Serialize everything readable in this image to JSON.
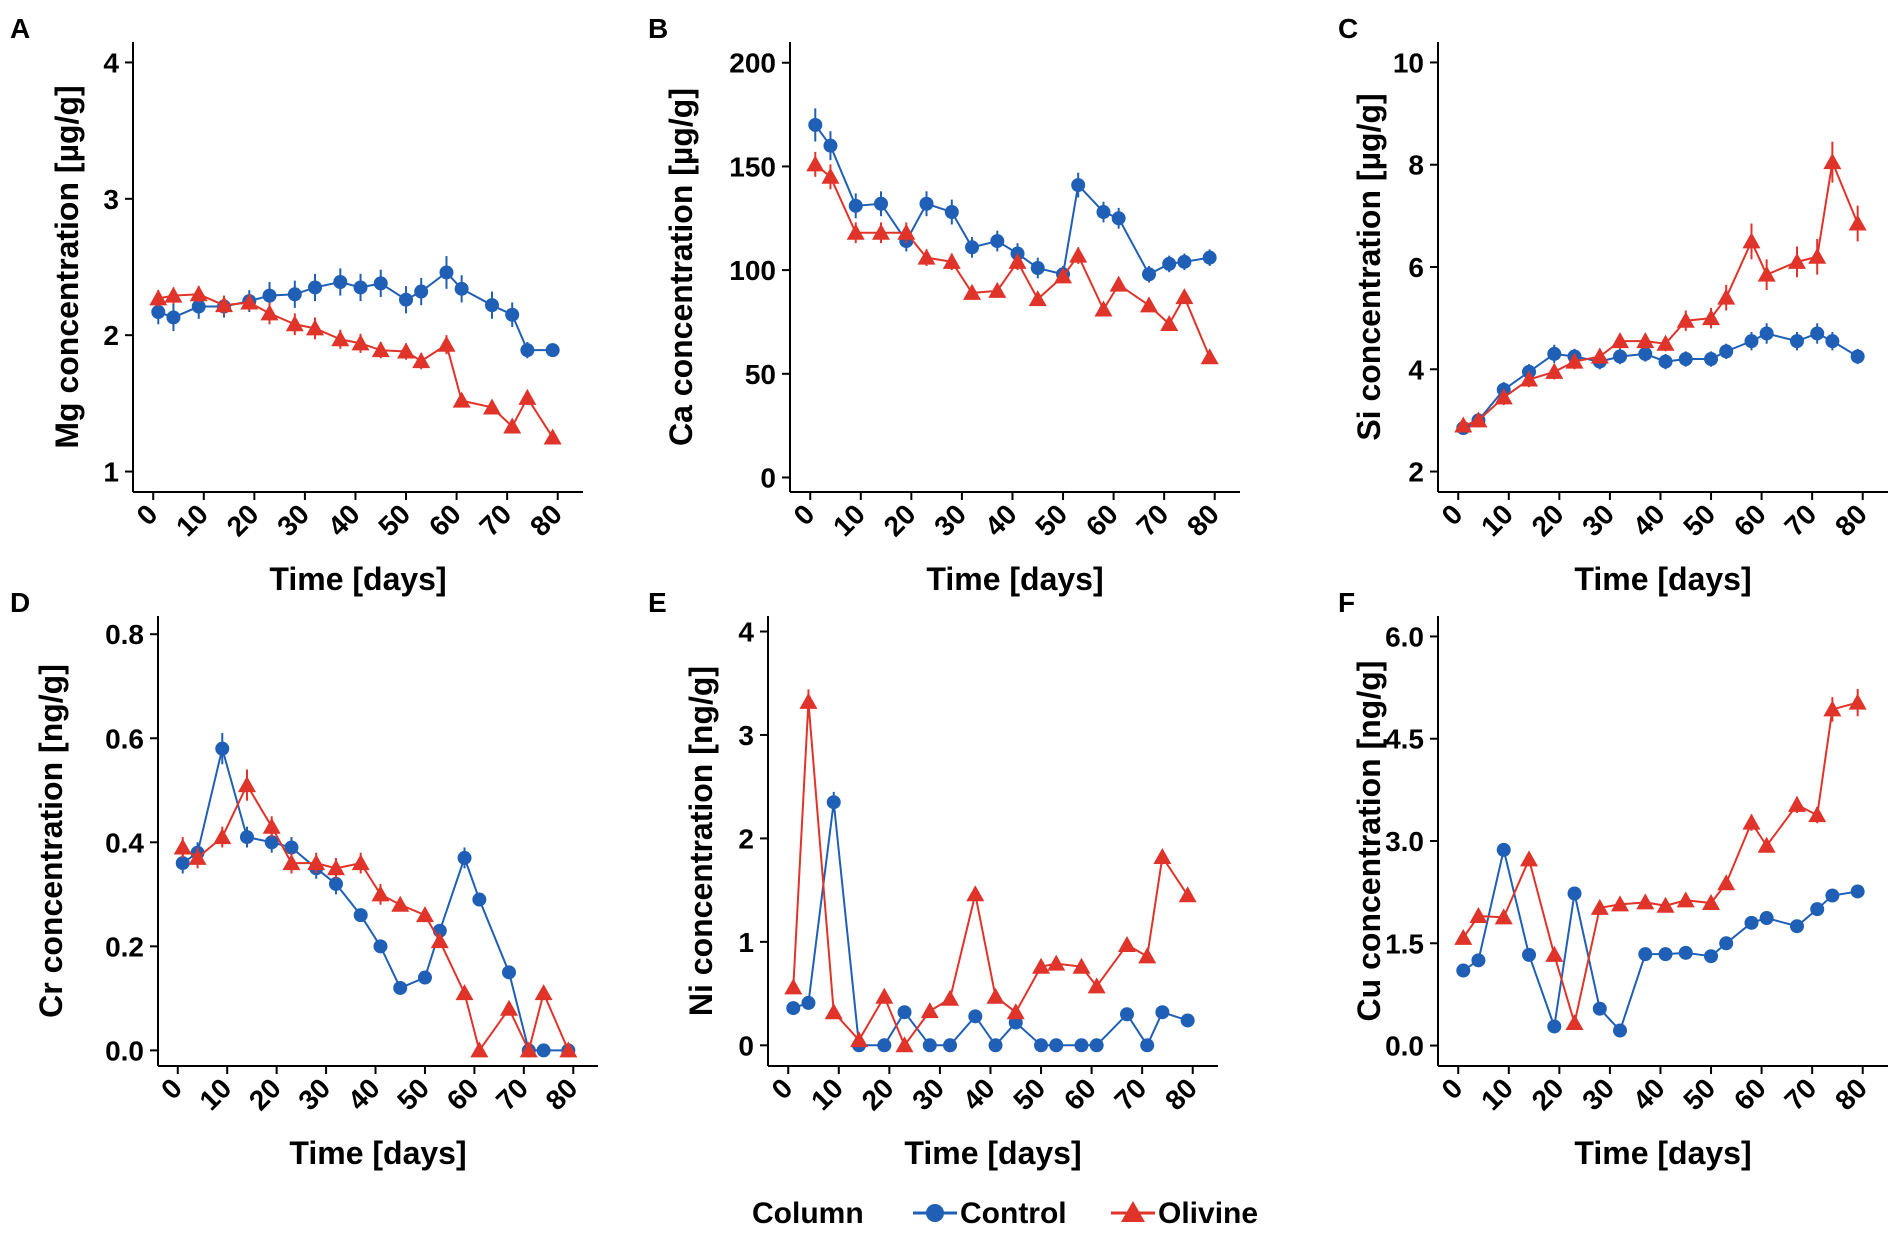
{
  "legend": {
    "title": "Column",
    "items": [
      {
        "label": "Control",
        "color": "#1F5FB5",
        "shape": "circle"
      },
      {
        "label": "Olivine",
        "color": "#E0342A",
        "shape": "triangle"
      }
    ]
  },
  "chart_data": [
    {
      "panel": "A",
      "type": "line",
      "xlabel": "Time [days]",
      "ylabel": "Mg concentration [µg/g]",
      "xlim": [
        -4,
        85
      ],
      "ylim": [
        0.85,
        4.15
      ],
      "xticks": [
        0,
        10,
        20,
        30,
        40,
        50,
        60,
        70,
        80
      ],
      "yticks": [
        1,
        2,
        3,
        4
      ],
      "ytick_labels": [
        "1",
        "2",
        "3",
        "4"
      ],
      "series": [
        {
          "name": "Control",
          "x": [
            1,
            4,
            9,
            14,
            19,
            23,
            28,
            32,
            37,
            41,
            45,
            50,
            53,
            58,
            61,
            67,
            71,
            74,
            79
          ],
          "y": [
            2.17,
            2.13,
            2.21,
            2.21,
            2.25,
            2.29,
            2.3,
            2.35,
            2.39,
            2.35,
            2.38,
            2.26,
            2.32,
            2.46,
            2.34,
            2.22,
            2.15,
            1.89,
            1.89
          ],
          "err": [
            0.09,
            0.1,
            0.09,
            0.08,
            0.08,
            0.1,
            0.1,
            0.1,
            0.1,
            0.1,
            0.1,
            0.1,
            0.1,
            0.12,
            0.1,
            0.1,
            0.09,
            0.06,
            0.05
          ]
        },
        {
          "name": "Olivine",
          "x": [
            1,
            4,
            9,
            14,
            19,
            23,
            28,
            32,
            37,
            41,
            45,
            50,
            53,
            58,
            61,
            67,
            71,
            74,
            79
          ],
          "y": [
            2.27,
            2.29,
            2.3,
            2.22,
            2.24,
            2.16,
            2.08,
            2.05,
            1.97,
            1.94,
            1.89,
            1.88,
            1.81,
            1.93,
            1.52,
            1.47,
            1.33,
            1.54,
            1.25
          ],
          "err": [
            0.06,
            0.06,
            0.06,
            0.07,
            0.06,
            0.08,
            0.08,
            0.08,
            0.07,
            0.07,
            0.06,
            0.06,
            0.06,
            0.07,
            0.05,
            0.04,
            0.05,
            0.05,
            0.04
          ]
        }
      ]
    },
    {
      "panel": "B",
      "type": "line",
      "xlabel": "Time [days]",
      "ylabel": "Ca concentration [µg/g]",
      "xlim": [
        -4,
        85
      ],
      "ylim": [
        -7,
        210
      ],
      "xticks": [
        0,
        10,
        20,
        30,
        40,
        50,
        60,
        70,
        80
      ],
      "yticks": [
        0,
        50,
        100,
        150,
        200
      ],
      "ytick_labels": [
        "0",
        "50",
        "100",
        "150",
        "200"
      ],
      "series": [
        {
          "name": "Control",
          "x": [
            1,
            4,
            9,
            14,
            19,
            23,
            28,
            32,
            37,
            41,
            45,
            50,
            53,
            58,
            61,
            67,
            71,
            74,
            79
          ],
          "y": [
            170,
            160,
            131,
            132,
            114,
            132,
            128,
            111,
            114,
            108,
            101,
            98,
            141,
            128,
            125,
            98,
            103,
            104,
            106
          ],
          "err": [
            8,
            7,
            6,
            6,
            5,
            6,
            6,
            5,
            5,
            5,
            5,
            4,
            6,
            5,
            5,
            4,
            4,
            4,
            4
          ]
        },
        {
          "name": "Olivine",
          "x": [
            1,
            4,
            9,
            14,
            19,
            23,
            28,
            32,
            37,
            41,
            45,
            50,
            53,
            58,
            61,
            67,
            71,
            74,
            79
          ],
          "y": [
            151,
            145,
            118,
            118,
            118,
            106,
            104,
            89,
            90,
            104,
            86,
            97,
            107,
            81,
            93,
            83,
            74,
            87,
            58
          ],
          "err": [
            6,
            6,
            5,
            5,
            5,
            4,
            4,
            3,
            3,
            4,
            3,
            3,
            4,
            3,
            3,
            3,
            3,
            3,
            2
          ]
        }
      ]
    },
    {
      "panel": "C",
      "type": "line",
      "xlabel": "Time [days]",
      "ylabel": "Si concentration [µg/g]",
      "xlim": [
        -4,
        85
      ],
      "ylim": [
        1.6,
        10.4
      ],
      "xticks": [
        0,
        10,
        20,
        30,
        40,
        50,
        60,
        70,
        80
      ],
      "yticks": [
        2,
        4,
        6,
        8,
        10
      ],
      "ytick_labels": [
        "2",
        "4",
        "6",
        "8",
        "10"
      ],
      "series": [
        {
          "name": "Control",
          "x": [
            1,
            4,
            9,
            14,
            19,
            23,
            28,
            32,
            37,
            41,
            45,
            50,
            53,
            58,
            61,
            67,
            71,
            74,
            79
          ],
          "y": [
            2.85,
            3.0,
            3.6,
            3.95,
            4.3,
            4.25,
            4.15,
            4.25,
            4.3,
            4.15,
            4.2,
            4.2,
            4.35,
            4.55,
            4.7,
            4.55,
            4.7,
            4.55,
            4.25
          ],
          "err": [
            0.08,
            0.1,
            0.15,
            0.15,
            0.18,
            0.15,
            0.15,
            0.15,
            0.15,
            0.15,
            0.15,
            0.15,
            0.15,
            0.18,
            0.2,
            0.18,
            0.2,
            0.18,
            0.15
          ]
        },
        {
          "name": "Olivine",
          "x": [
            1,
            4,
            9,
            14,
            19,
            23,
            28,
            32,
            37,
            41,
            45,
            50,
            53,
            58,
            61,
            67,
            71,
            74,
            79
          ],
          "y": [
            2.9,
            3.0,
            3.45,
            3.8,
            3.95,
            4.15,
            4.25,
            4.55,
            4.55,
            4.5,
            4.95,
            5.0,
            5.4,
            6.5,
            5.85,
            6.1,
            6.2,
            8.05,
            6.85
          ],
          "err": [
            0.1,
            0.1,
            0.15,
            0.15,
            0.15,
            0.15,
            0.15,
            0.15,
            0.15,
            0.15,
            0.2,
            0.2,
            0.25,
            0.35,
            0.3,
            0.3,
            0.35,
            0.4,
            0.35
          ]
        }
      ]
    },
    {
      "panel": "D",
      "type": "line",
      "xlabel": "Time [days]",
      "ylabel": "Cr concentration [ng/g]",
      "xlim": [
        -4,
        85
      ],
      "ylim": [
        -0.03,
        0.835
      ],
      "xticks": [
        0,
        10,
        20,
        30,
        40,
        50,
        60,
        70,
        80
      ],
      "yticks": [
        0,
        0.2,
        0.4,
        0.6,
        0.8
      ],
      "ytick_labels": [
        "0.0",
        "0.2",
        "0.4",
        "0.6",
        "0.8"
      ],
      "series": [
        {
          "name": "Control",
          "x": [
            1,
            4,
            9,
            14,
            19,
            23,
            28,
            32,
            37,
            41,
            45,
            50,
            53,
            58,
            61,
            67,
            71,
            74,
            79
          ],
          "y": [
            0.36,
            0.38,
            0.58,
            0.41,
            0.4,
            0.39,
            0.35,
            0.32,
            0.26,
            0.2,
            0.12,
            0.14,
            0.23,
            0.37,
            0.29,
            0.15,
            0.0,
            0.0,
            0.0
          ],
          "err": [
            0.02,
            0.02,
            0.03,
            0.02,
            0.02,
            0.02,
            0.02,
            0.02,
            0.01,
            0.01,
            0.01,
            0.01,
            0.01,
            0.02,
            0.01,
            0.01,
            0.0,
            0.0,
            0.0
          ]
        },
        {
          "name": "Olivine",
          "x": [
            1,
            4,
            9,
            14,
            19,
            23,
            28,
            32,
            37,
            41,
            45,
            50,
            53,
            58,
            61,
            67,
            71,
            74,
            79
          ],
          "y": [
            0.39,
            0.37,
            0.41,
            0.51,
            0.43,
            0.36,
            0.36,
            0.35,
            0.36,
            0.3,
            0.28,
            0.26,
            0.21,
            0.11,
            0.0,
            0.08,
            0.0,
            0.11,
            0.0
          ],
          "err": [
            0.02,
            0.02,
            0.02,
            0.03,
            0.02,
            0.02,
            0.02,
            0.02,
            0.02,
            0.02,
            0.01,
            0.01,
            0.01,
            0.01,
            0.0,
            0.01,
            0.0,
            0.01,
            0.0
          ]
        }
      ]
    },
    {
      "panel": "E",
      "type": "line",
      "xlabel": "Time [days]",
      "ylabel": "Ni concentration [ng/g]",
      "xlim": [
        -4,
        85
      ],
      "ylim": [
        -0.2,
        4.15
      ],
      "xticks": [
        0,
        10,
        20,
        30,
        40,
        50,
        60,
        70,
        80
      ],
      "yticks": [
        0,
        1,
        2,
        3,
        4
      ],
      "ytick_labels": [
        "0",
        "1",
        "2",
        "3",
        "4"
      ],
      "series": [
        {
          "name": "Control",
          "x": [
            1,
            4,
            9,
            14,
            19,
            23,
            28,
            32,
            37,
            41,
            45,
            50,
            53,
            58,
            61,
            67,
            71,
            74,
            79
          ],
          "y": [
            0.36,
            0.41,
            2.35,
            0.0,
            0.0,
            0.32,
            0.0,
            0.0,
            0.28,
            0.0,
            0.22,
            0.0,
            0.0,
            0.0,
            0.0,
            0.3,
            0.0,
            0.32,
            0.24
          ],
          "err": [
            0.03,
            0.03,
            0.1,
            0.0,
            0.0,
            0.02,
            0.0,
            0.0,
            0.02,
            0.0,
            0.02,
            0.0,
            0.0,
            0.0,
            0.0,
            0.02,
            0.0,
            0.02,
            0.02
          ]
        },
        {
          "name": "Olivine",
          "x": [
            1,
            4,
            9,
            14,
            19,
            23,
            28,
            32,
            37,
            41,
            45,
            50,
            53,
            58,
            61,
            67,
            71,
            74,
            79
          ],
          "y": [
            0.56,
            3.32,
            0.32,
            0.05,
            0.47,
            0.0,
            0.33,
            0.45,
            1.46,
            0.47,
            0.32,
            0.76,
            0.79,
            0.76,
            0.57,
            0.97,
            0.86,
            1.82,
            1.45
          ],
          "err": [
            0.04,
            0.12,
            0.03,
            0.02,
            0.03,
            0.0,
            0.03,
            0.03,
            0.06,
            0.03,
            0.03,
            0.04,
            0.04,
            0.04,
            0.04,
            0.05,
            0.05,
            0.07,
            0.06
          ]
        }
      ]
    },
    {
      "panel": "F",
      "type": "line",
      "xlabel": "Time [days]",
      "ylabel": "Cu concentration [ng/g]",
      "xlim": [
        -4,
        85
      ],
      "ylim": [
        -0.3,
        6.3
      ],
      "xticks": [
        0,
        10,
        20,
        30,
        40,
        50,
        60,
        70,
        80
      ],
      "yticks": [
        0,
        1.5,
        3,
        4.5,
        6
      ],
      "ytick_labels": [
        "0.0",
        "1.5",
        "3.0",
        "4.5",
        "6.0"
      ],
      "series": [
        {
          "name": "Control",
          "x": [
            1,
            4,
            9,
            14,
            19,
            23,
            28,
            32,
            37,
            41,
            45,
            50,
            53,
            58,
            61,
            67,
            71,
            74,
            79
          ],
          "y": [
            1.1,
            1.25,
            2.87,
            1.33,
            0.28,
            2.23,
            0.54,
            0.22,
            1.34,
            1.34,
            1.36,
            1.31,
            1.5,
            1.8,
            1.87,
            1.75,
            2.0,
            2.2,
            2.26
          ],
          "err": [
            0.05,
            0.05,
            0.1,
            0.05,
            0.03,
            0.08,
            0.04,
            0.03,
            0.05,
            0.05,
            0.05,
            0.05,
            0.06,
            0.07,
            0.07,
            0.07,
            0.08,
            0.08,
            0.08
          ]
        },
        {
          "name": "Olivine",
          "x": [
            1,
            4,
            9,
            14,
            19,
            23,
            28,
            32,
            37,
            41,
            45,
            50,
            53,
            58,
            61,
            67,
            71,
            74,
            79
          ],
          "y": [
            1.58,
            1.9,
            1.88,
            2.73,
            1.33,
            0.33,
            2.02,
            2.07,
            2.1,
            2.05,
            2.13,
            2.09,
            2.38,
            3.27,
            2.93,
            3.53,
            3.38,
            4.93,
            5.03
          ],
          "err": [
            0.05,
            0.06,
            0.06,
            0.08,
            0.05,
            0.03,
            0.06,
            0.06,
            0.06,
            0.06,
            0.07,
            0.07,
            0.08,
            0.12,
            0.1,
            0.12,
            0.12,
            0.18,
            0.2
          ]
        }
      ]
    }
  ]
}
